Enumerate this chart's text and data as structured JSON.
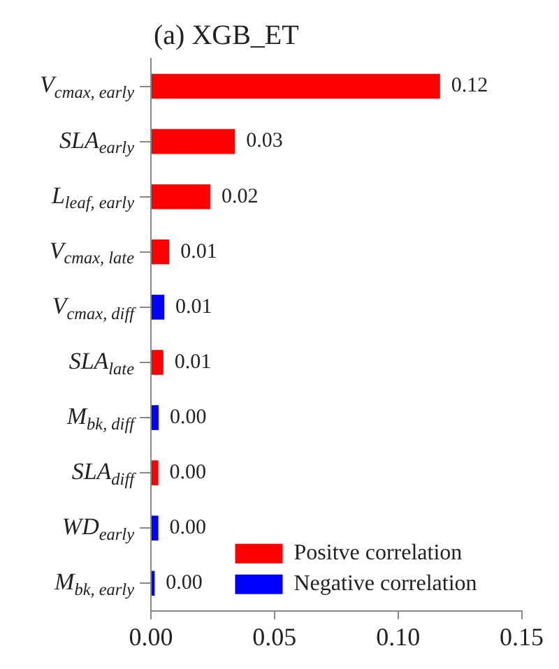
{
  "chart_data": {
    "type": "bar",
    "orientation": "horizontal",
    "title": "(a) XGB_ET",
    "categories": [
      "V$_{cmax, early}$",
      "SLA$_{early}$",
      "L$_{leaf, early}$",
      "V$_{cmax, late}$",
      "V$_{cmax, diff}$",
      "SLA$_{late}$",
      "M$_{bk, diff}$",
      "SLA$_{diff}$",
      "WD$_{early}$",
      "M$_{bk, early}$"
    ],
    "series": [
      {
        "name": "Positve correlation",
        "color": "#ff0000",
        "values": [
          0.117,
          0.034,
          0.024,
          0.0074,
          null,
          0.005,
          null,
          0.003,
          null,
          null
        ],
        "value_labels": [
          "0.12",
          "0.03",
          "0.02",
          "0.01",
          null,
          "0.01",
          null,
          "0.00",
          null,
          null
        ]
      },
      {
        "name": "Negative correlation",
        "color": "#0000ff",
        "values": [
          null,
          null,
          null,
          null,
          0.0054,
          null,
          0.0031,
          null,
          0.003,
          0.0015
        ],
        "value_labels": [
          null,
          null,
          null,
          null,
          "0.01",
          null,
          "0.00",
          null,
          "0.00",
          "0.00"
        ]
      }
    ],
    "xlim": [
      0,
      0.15
    ],
    "xticks": [
      {
        "value": 0,
        "label": "0.00"
      },
      {
        "value": 0.05,
        "label": "0.05"
      },
      {
        "value": 0.1,
        "label": "0.10"
      },
      {
        "value": 0.15,
        "label": "0.15"
      }
    ],
    "grid": false,
    "legend": "bottom right"
  }
}
